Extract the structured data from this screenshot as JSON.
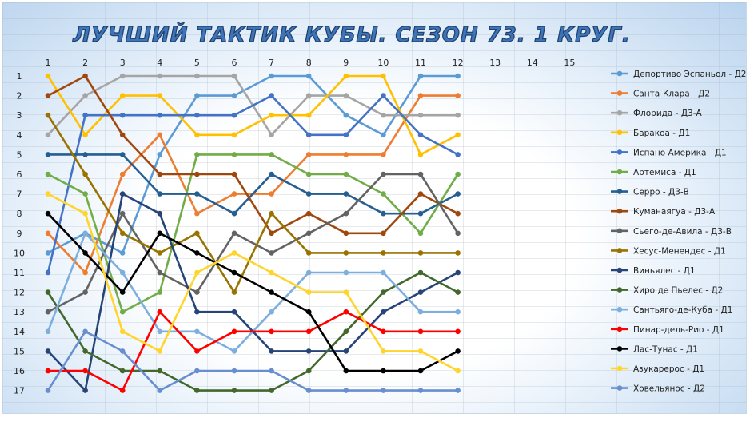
{
  "colors": {
    "title_fill": "#3e74b8",
    "title_stroke": "#1f3f6a"
  },
  "chart_data": {
    "type": "line",
    "title": "ЛУЧШИЙ ТАКТИК КУБЫ. СЕЗОН 73. 1 КРУГ.",
    "x": [
      1,
      2,
      3,
      4,
      5,
      6,
      7,
      8,
      9,
      10,
      11,
      12
    ],
    "x_ticks": [
      "1",
      "2",
      "3",
      "4",
      "5",
      "6",
      "7",
      "8",
      "9",
      "10",
      "11",
      "12",
      "13",
      "14",
      "15"
    ],
    "y_ticks": [
      "1",
      "2",
      "3",
      "4",
      "5",
      "6",
      "7",
      "8",
      "9",
      "10",
      "11",
      "12",
      "13",
      "14",
      "15",
      "16",
      "17"
    ],
    "xlim": [
      1,
      15
    ],
    "ylim": [
      1,
      17
    ],
    "y_inverted": true,
    "grid": true,
    "legend_position": "right",
    "series": [
      {
        "name": "Депортиво Эспаньол - Д2",
        "color": "#5b9bd5",
        "values": [
          10,
          9,
          10,
          5,
          2,
          2,
          1,
          1,
          3,
          4,
          1,
          1
        ]
      },
      {
        "name": "Санта-Клара - Д2",
        "color": "#ed7d31",
        "values": [
          9,
          11,
          6,
          4,
          8,
          7,
          7,
          5,
          5,
          5,
          2,
          2
        ]
      },
      {
        "name": "Флорида - Д3-А",
        "color": "#a5a5a5",
        "values": [
          4,
          2,
          1,
          1,
          1,
          1,
          4,
          2,
          2,
          3,
          3,
          3
        ]
      },
      {
        "name": "Баракоа - Д1",
        "color": "#ffc000",
        "values": [
          1,
          4,
          2,
          2,
          4,
          4,
          3,
          3,
          1,
          1,
          5,
          4
        ]
      },
      {
        "name": "Испано Америка - Д1",
        "color": "#4472c4",
        "values": [
          11,
          3,
          3,
          3,
          3,
          3,
          2,
          4,
          4,
          2,
          4,
          5
        ]
      },
      {
        "name": "Артемиса - Д1",
        "color": "#70ad47",
        "values": [
          6,
          7,
          13,
          12,
          5,
          5,
          5,
          6,
          6,
          7,
          9,
          6
        ]
      },
      {
        "name": "Серро - Д3-В",
        "color": "#255e91",
        "values": [
          5,
          5,
          5,
          7,
          7,
          8,
          6,
          7,
          7,
          8,
          8,
          7
        ]
      },
      {
        "name": "Куманаягуа - Д3-А",
        "color": "#9e480e",
        "values": [
          2,
          1,
          4,
          6,
          6,
          6,
          9,
          8,
          9,
          9,
          7,
          8
        ]
      },
      {
        "name": "Сьего-де-Авила - Д3-В",
        "color": "#636363",
        "values": [
          13,
          12,
          8,
          11,
          12,
          9,
          10,
          9,
          8,
          6,
          6,
          9
        ]
      },
      {
        "name": "Хесус-Менендес - Д1",
        "color": "#997300",
        "values": [
          3,
          6,
          9,
          10,
          9,
          12,
          8,
          10,
          10,
          10,
          10,
          10
        ]
      },
      {
        "name": "Виньялес - Д1",
        "color": "#264478",
        "values": [
          15,
          17,
          7,
          8,
          13,
          13,
          15,
          15,
          15,
          13,
          12,
          11
        ]
      },
      {
        "name": "Хиро де Пьелес - Д2",
        "color": "#43682b",
        "values": [
          12,
          15,
          16,
          16,
          17,
          17,
          17,
          16,
          14,
          12,
          11,
          12
        ]
      },
      {
        "name": "Сантьяго-де-Куба - Д1",
        "color": "#7cafdd",
        "values": [
          14,
          9,
          11,
          14,
          14,
          15,
          13,
          11,
          11,
          11,
          13,
          13
        ]
      },
      {
        "name": "Пинар-дель-Рио - Д1",
        "color": "#ff0000",
        "values": [
          16,
          16,
          17,
          13,
          15,
          14,
          14,
          14,
          13,
          14,
          14,
          14
        ]
      },
      {
        "name": "Лас-Тунас - Д1",
        "color": "#000000",
        "values": [
          8,
          10,
          12,
          9,
          10,
          11,
          12,
          13,
          16,
          16,
          16,
          15
        ]
      },
      {
        "name": "Азукарерос - Д1",
        "color": "#ffd52b",
        "values": [
          7,
          8,
          14,
          15,
          11,
          10,
          11,
          12,
          12,
          15,
          15,
          16
        ]
      },
      {
        "name": "Ховельянос - Д2",
        "color": "#698ed0",
        "values": [
          17,
          14,
          15,
          17,
          16,
          16,
          16,
          17,
          17,
          17,
          17,
          17
        ]
      }
    ]
  }
}
